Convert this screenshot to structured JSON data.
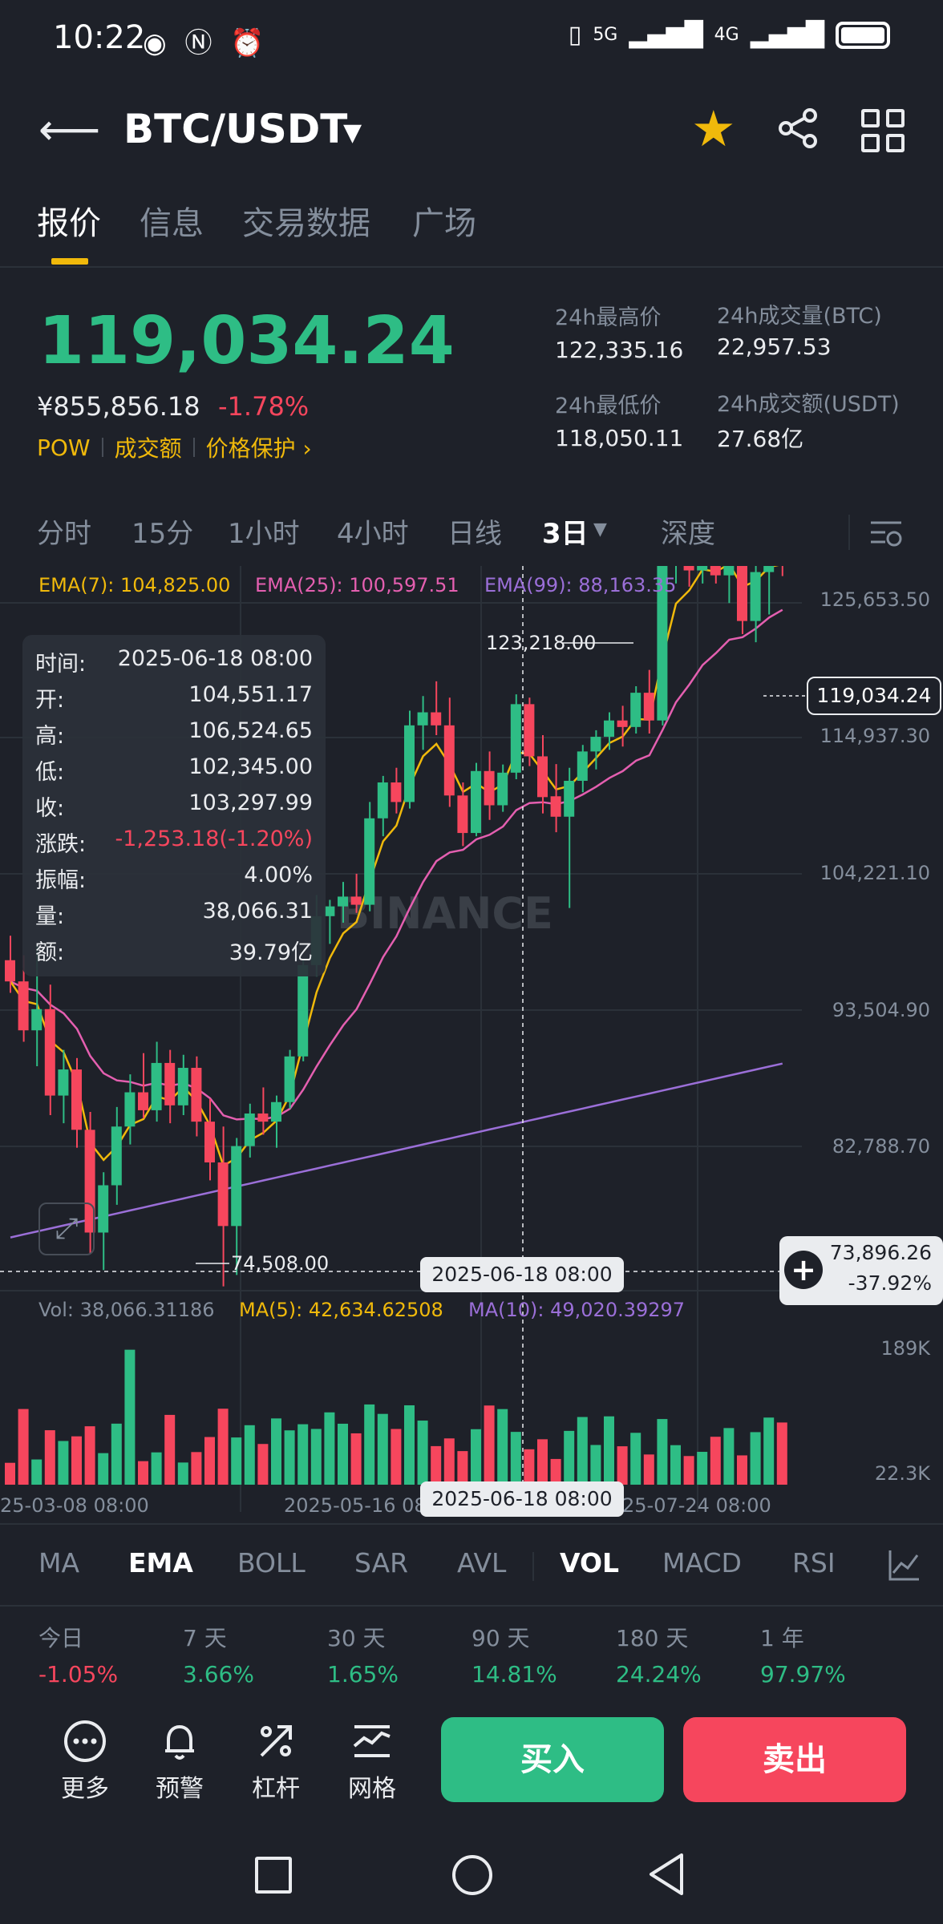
{
  "status_bar": {
    "time": "10:22",
    "signal_1": "5G",
    "signal_2": "4G"
  },
  "header": {
    "pair": "BTC/USDT"
  },
  "tabs": [
    {
      "label": "报价"
    },
    {
      "label": "信息"
    },
    {
      "label": "交易数据"
    },
    {
      "label": "广场"
    }
  ],
  "ticker": {
    "last_price": "119,034.24",
    "cny_price": "¥855,856.18",
    "change_pct": "-1.78%",
    "tags": [
      "POW",
      "成交额",
      "价格保护 ›"
    ],
    "stats": [
      {
        "label": "24h最高价",
        "value": "122,335.16"
      },
      {
        "label": "24h成交量(BTC)",
        "value": "22,957.53"
      },
      {
        "label": "24h最低价",
        "value": "118,050.11"
      },
      {
        "label": "24h成交额(USDT)",
        "value": "27.68亿"
      }
    ]
  },
  "intervals": [
    {
      "label": "分时"
    },
    {
      "label": "15分"
    },
    {
      "label": "1小时"
    },
    {
      "label": "4小时"
    },
    {
      "label": "日线"
    },
    {
      "label": "3日",
      "selected": true
    },
    {
      "label": "深度"
    }
  ],
  "ema_legend": [
    {
      "label": "EMA(7): 104,825.00",
      "color": "#f0b90b"
    },
    {
      "label": "EMA(25): 100,597.51",
      "color": "#e45fb0"
    },
    {
      "label": "EMA(99): 88,163.35",
      "color": "#9b6fd8"
    }
  ],
  "tooltip": [
    {
      "k": "时间:",
      "v": "2025-06-18 08:00"
    },
    {
      "k": "开:",
      "v": "104,551.17"
    },
    {
      "k": "高:",
      "v": "106,524.65"
    },
    {
      "k": "低:",
      "v": "102,345.00"
    },
    {
      "k": "收:",
      "v": "103,297.99"
    },
    {
      "k": "涨跌:",
      "v": "-1,253.18(-1.20%)"
    },
    {
      "k": "振幅:",
      "v": "4.00%"
    },
    {
      "k": "量:",
      "v": "38,066.31"
    },
    {
      "k": "额:",
      "v": "39.79亿"
    }
  ],
  "price_axis": [
    "125,653.50",
    "114,937.30",
    "104,221.10",
    "93,504.90",
    "82,788.70"
  ],
  "current_price_box": "119,034.24",
  "high_label": "123,218.00",
  "low_label": "74,508.00",
  "crosshair_date": "2025-06-18 08:00",
  "crosshair_price": {
    "value": "73,896.26",
    "pct": "-37.92%"
  },
  "watermark": "BINANCE",
  "volume_legend": [
    {
      "label": "Vol: 38,066.31186",
      "color": "#848e9c"
    },
    {
      "label": "MA(5): 42,634.62508",
      "color": "#f0b90b"
    },
    {
      "label": "MA(10): 49,020.39297",
      "color": "#9b6fd8"
    }
  ],
  "volume_axis": [
    "189K",
    "22.3K"
  ],
  "time_axis": [
    "25-03-08 08:00",
    "2025-05-16 08:00",
    "25-07-24 08:00"
  ],
  "indicator_tabs": [
    {
      "label": "MA"
    },
    {
      "label": "EMA",
      "selected": true
    },
    {
      "label": "BOLL"
    },
    {
      "label": "SAR"
    },
    {
      "label": "AVL"
    },
    {
      "label": "VOL",
      "selected": true
    },
    {
      "label": "MACD"
    },
    {
      "label": "RSI"
    }
  ],
  "performance": [
    {
      "label": "今日",
      "value": "-1.05%",
      "color": "#f6465d"
    },
    {
      "label": "7 天",
      "value": "3.66%",
      "color": "#2ebd85"
    },
    {
      "label": "30 天",
      "value": "1.65%",
      "color": "#2ebd85"
    },
    {
      "label": "90 天",
      "value": "14.81%",
      "color": "#2ebd85"
    },
    {
      "label": "180 天",
      "value": "24.24%",
      "color": "#2ebd85"
    },
    {
      "label": "1 年",
      "value": "97.97%",
      "color": "#2ebd85"
    }
  ],
  "bottom_actions": [
    {
      "label": "更多",
      "icon": "more-icon"
    },
    {
      "label": "预警",
      "icon": "bell-icon"
    },
    {
      "label": "杠杆",
      "icon": "leverage-icon"
    },
    {
      "label": "网格",
      "icon": "grid-trading-icon"
    }
  ],
  "buy_label": "买入",
  "sell_label": "卖出",
  "chart_data": {
    "type": "candlestick",
    "y_range": [
      74000,
      126000
    ],
    "up_color": "#2ebd85",
    "down_color": "#f6465d",
    "candles": [
      [
        94500,
        96000,
        92500,
        93200
      ],
      [
        93200,
        94800,
        89500,
        90200
      ],
      [
        90200,
        95500,
        88000,
        91500
      ],
      [
        91500,
        93000,
        85000,
        86200
      ],
      [
        86200,
        89000,
        84500,
        87800
      ],
      [
        87800,
        88500,
        83000,
        84100
      ],
      [
        84100,
        85200,
        76500,
        77800
      ],
      [
        77800,
        81500,
        75500,
        80700
      ],
      [
        80700,
        85500,
        79500,
        84300
      ],
      [
        84300,
        87500,
        83200,
        86400
      ],
      [
        86400,
        88800,
        84800,
        85300
      ],
      [
        85300,
        89500,
        84600,
        88200
      ],
      [
        88200,
        89000,
        84500,
        85600
      ],
      [
        85600,
        88700,
        85000,
        87900
      ],
      [
        87900,
        88600,
        83700,
        84600
      ],
      [
        84600,
        86000,
        81000,
        82100
      ],
      [
        82100,
        84300,
        74500,
        78200
      ],
      [
        78200,
        83600,
        75200,
        83100
      ],
      [
        83100,
        85700,
        82400,
        85100
      ],
      [
        85100,
        86700,
        83800,
        84600
      ],
      [
        84600,
        86200,
        83000,
        85800
      ],
      [
        85800,
        89000,
        85400,
        88600
      ],
      [
        88600,
        94500,
        88300,
        94200
      ],
      [
        94200,
        98500,
        93500,
        97200
      ],
      [
        97200,
        98200,
        95500,
        97800
      ],
      [
        97800,
        99300,
        96800,
        98400
      ],
      [
        98400,
        99800,
        97400,
        97900
      ],
      [
        97900,
        104200,
        97500,
        103200
      ],
      [
        103200,
        105800,
        102100,
        105400
      ],
      [
        105400,
        106300,
        103500,
        104200
      ],
      [
        104200,
        109800,
        103800,
        108900
      ],
      [
        108900,
        110700,
        107400,
        109700
      ],
      [
        109700,
        111600,
        108300,
        108900
      ],
      [
        108900,
        110600,
        103900,
        104600
      ],
      [
        104600,
        105400,
        101500,
        102300
      ],
      [
        102300,
        106600,
        102100,
        106100
      ],
      [
        106100,
        107300,
        103100,
        104000
      ],
      [
        104000,
        106500,
        103600,
        106000
      ],
      [
        106000,
        110800,
        105600,
        110200
      ],
      [
        110200,
        110600,
        106400,
        107000
      ],
      [
        107000,
        108300,
        103500,
        104500
      ],
      [
        104551,
        106525,
        102345,
        103298
      ],
      [
        103300,
        106300,
        97700,
        105500
      ],
      [
        105500,
        107700,
        104800,
        107300
      ],
      [
        107300,
        108600,
        106200,
        108200
      ],
      [
        108200,
        109700,
        107400,
        109200
      ],
      [
        109200,
        110100,
        107600,
        108800
      ],
      [
        108800,
        111300,
        108400,
        110900
      ],
      [
        110900,
        112300,
        108400,
        109200
      ],
      [
        109200,
        119600,
        108900,
        118800
      ],
      [
        118800,
        123218,
        117600,
        121300
      ],
      [
        121300,
        121800,
        117400,
        118400
      ],
      [
        118400,
        121200,
        117600,
        120400
      ],
      [
        120400,
        120800,
        117600,
        118100
      ],
      [
        118100,
        120300,
        116400,
        119500
      ],
      [
        119500,
        120000,
        114500,
        115300
      ],
      [
        115300,
        119600,
        114000,
        118300
      ],
      [
        118300,
        120200,
        115700,
        119900
      ],
      [
        119900,
        122335,
        118050,
        119034
      ]
    ],
    "ema7_end": 104825.0,
    "ema25_end": 100597.51,
    "ema99_end": 88163.35,
    "volume_range": [
      0,
      189000
    ]
  }
}
